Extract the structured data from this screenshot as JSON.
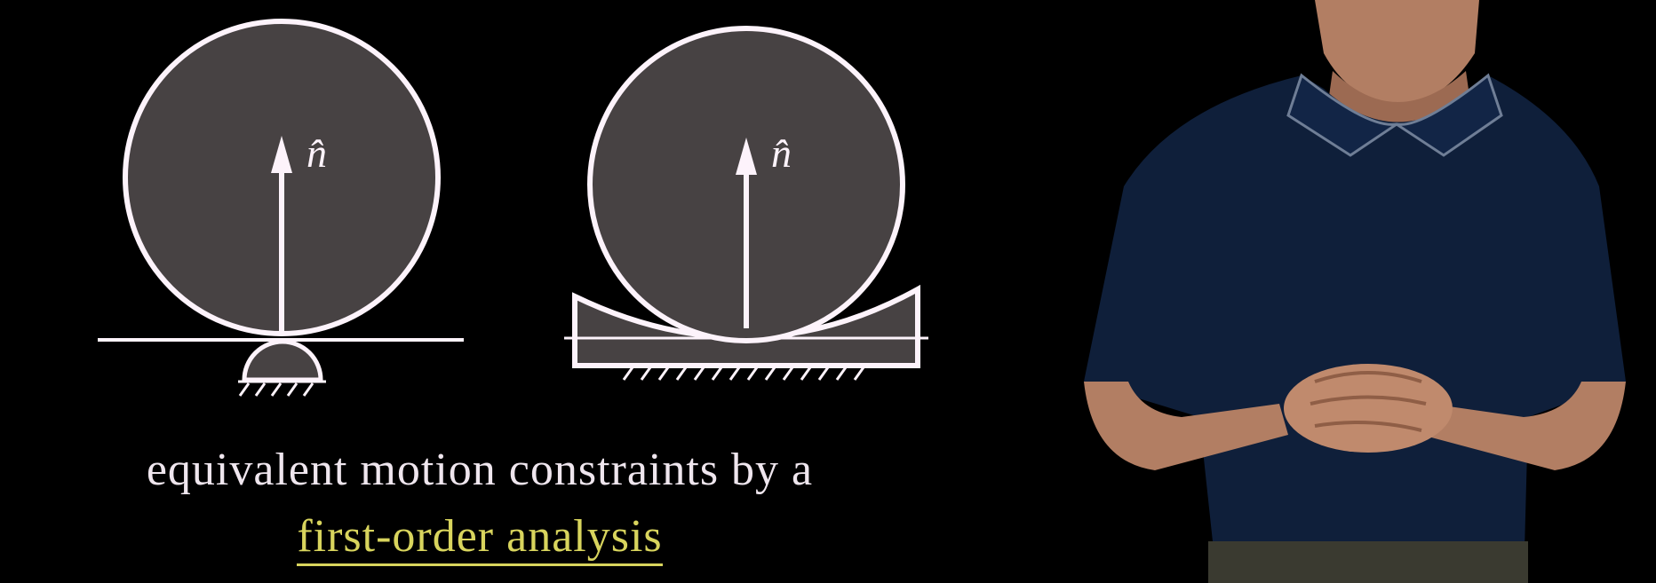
{
  "colors": {
    "background": "#000000",
    "stroke": "#fdf3fb",
    "body_fill": "#474243",
    "caption_text": "#efe6ee",
    "highlight": "#d8d45d",
    "presenter_shirt": "#0f1f3a",
    "presenter_skin": "#b27e63"
  },
  "diagram_left": {
    "normal_label": "n̂",
    "description": "disk on flat surface with round pin support"
  },
  "diagram_right": {
    "normal_label": "n̂",
    "description": "disk resting in concave fixture"
  },
  "caption": {
    "line1": "equivalent motion constraints by a",
    "line2": "first-order analysis"
  },
  "presenter": {
    "icon": "presenter-figure"
  }
}
